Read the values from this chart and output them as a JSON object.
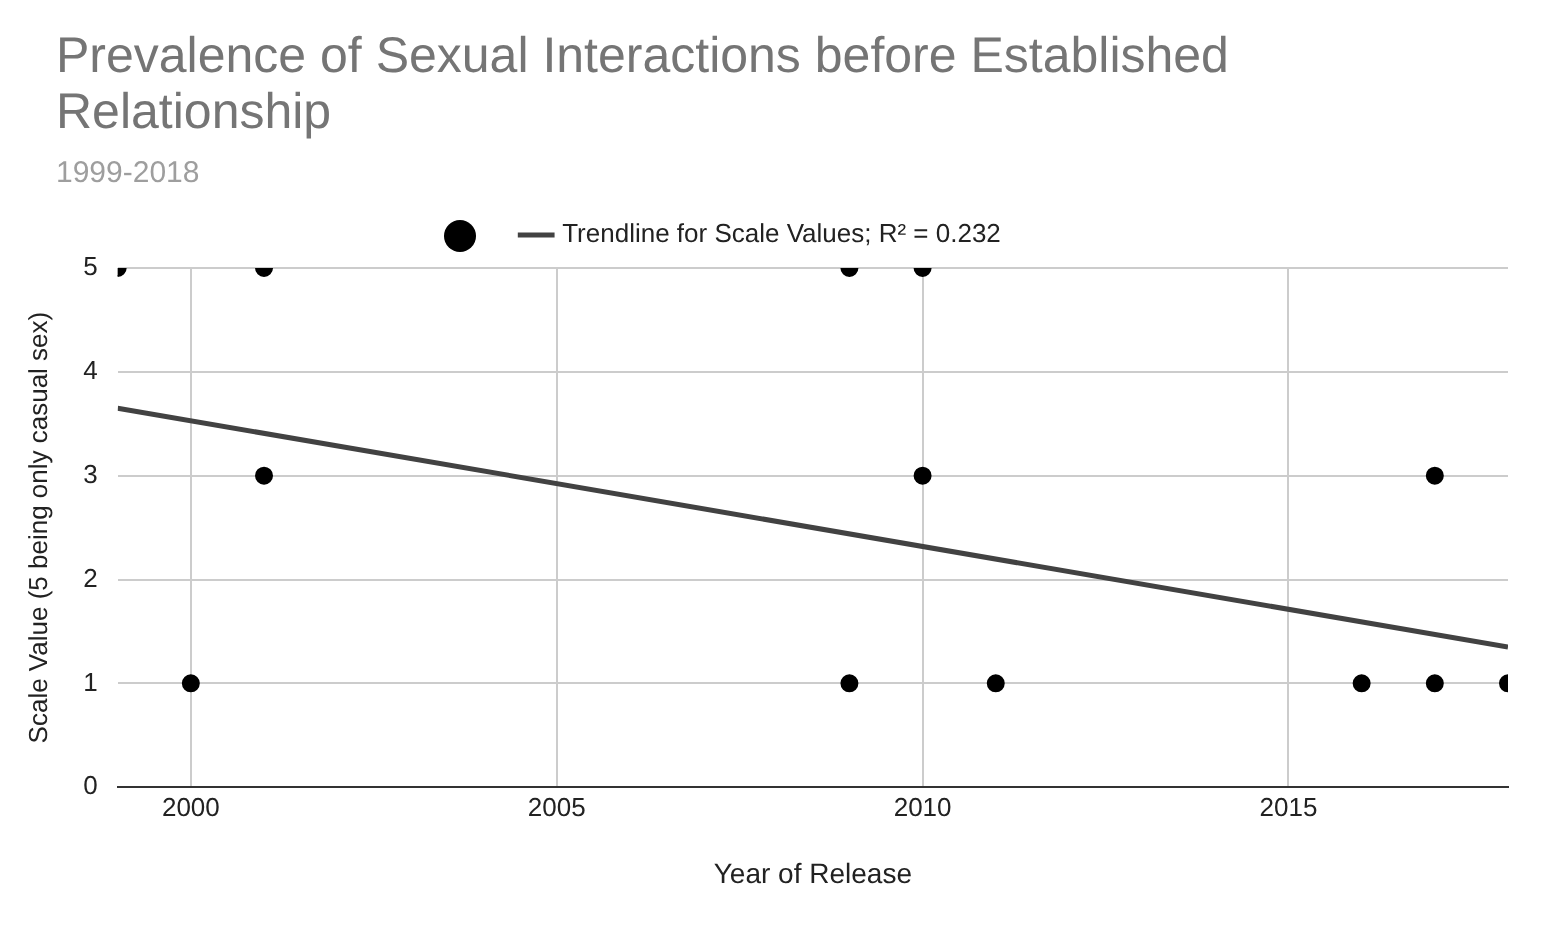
{
  "chart_data": {
    "type": "scatter",
    "title": "Prevalence of Sexual Interactions before Established Relationship",
    "subtitle": "1999-2018",
    "xlabel": "Year of Release",
    "ylabel": "Scale Value (5 being only casual sex)",
    "series": [
      {
        "type": "scatter",
        "marker": "circle",
        "color": "#000000",
        "x": [
          1999,
          2000,
          2001,
          2001,
          2009,
          2009,
          2010,
          2010,
          2011,
          2016,
          2017,
          2017,
          2018
        ],
        "values": [
          5,
          1,
          5,
          3,
          5,
          1,
          5,
          3,
          1,
          1,
          3,
          1,
          1
        ]
      },
      {
        "type": "line",
        "name": "Trendline for Scale Values; R² = 0.232",
        "color": "#424242",
        "x": [
          1999,
          2018
        ],
        "values": [
          3.65,
          1.35
        ]
      }
    ],
    "xlim": [
      1999,
      2018
    ],
    "xticks": [
      2000,
      2005,
      2010,
      2015
    ],
    "ylim": [
      0,
      5
    ],
    "yticks": [
      0,
      1,
      2,
      3,
      4,
      5
    ],
    "grid": true,
    "legend": "top"
  }
}
